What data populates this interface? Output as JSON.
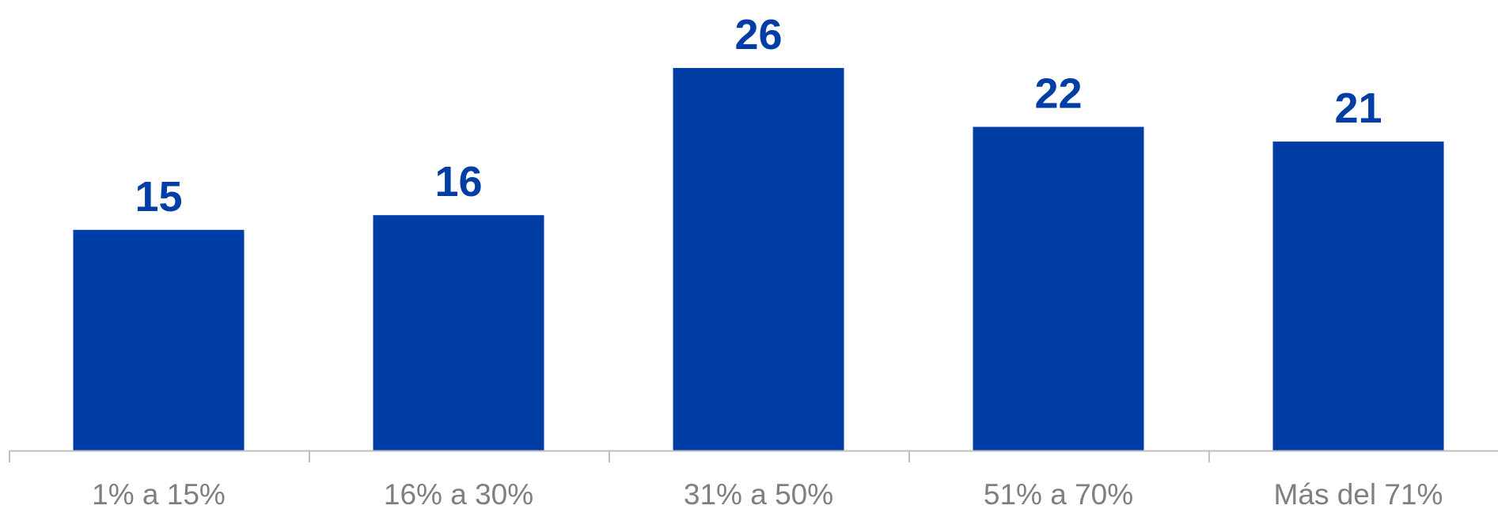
{
  "chart_data": {
    "type": "bar",
    "categories": [
      "1% a 15%",
      "16% a 30%",
      "31% a 50%",
      "51% a 70%",
      "Más del 71%"
    ],
    "values": [
      15,
      16,
      26,
      22,
      21
    ],
    "data_labels": [
      "15",
      "16",
      "26",
      "22",
      "21"
    ],
    "title": "",
    "xlabel": "",
    "ylabel": "",
    "ylim": [
      0,
      27
    ],
    "grid": false,
    "legend": "none",
    "colors": {
      "bar": "#003DA5",
      "data_label": "#003DA5",
      "axis": "#bfbfbf",
      "tick_label": "#7f7f7f"
    }
  }
}
